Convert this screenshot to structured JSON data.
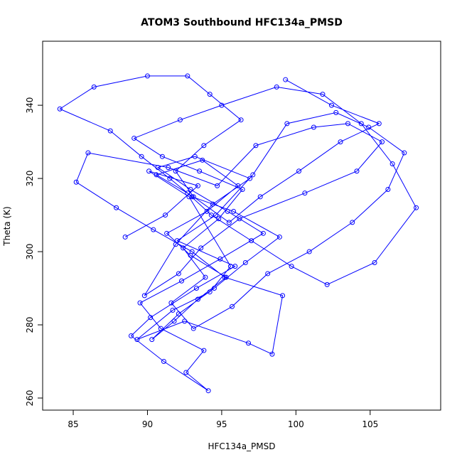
{
  "chart_data": {
    "type": "line",
    "title": "ATOM3 Southbound HFC134a_PMSD",
    "x_label": "HFC134a_PMSD",
    "y_label": "Theta (K)",
    "color": "#0000ff",
    "markers": true,
    "xlim": [
      82.94,
      109.75
    ],
    "ylim": [
      256.7,
      357.5
    ],
    "xticks": [
      85,
      90,
      95,
      100,
      105
    ],
    "yticks": [
      260,
      280,
      300,
      320,
      340
    ],
    "x": [
      88.5,
      91.2,
      93.4,
      90.1,
      92.8,
      95.6,
      94.2,
      91.7,
      89.3,
      92.5,
      96.8,
      98.4,
      99.1,
      95.2,
      93.0,
      90.4,
      87.9,
      85.2,
      86.0,
      91.4,
      94.7,
      97.3,
      101.2,
      103.5,
      105.8,
      104.1,
      100.6,
      96.2,
      93.6,
      92.1,
      89.8,
      91.9,
      94.4,
      96.9,
      93.2,
      90.7,
      92.9,
      95.4,
      97.8,
      94.9,
      92.3,
      89.5,
      90.9,
      93.8,
      92.6,
      94.1,
      91.1,
      88.9,
      90.2,
      93.3,
      95.9,
      92.0,
      94.6,
      97.1,
      99.4,
      102.7,
      104.9,
      107.3,
      106.2,
      103.8,
      100.9,
      98.1,
      95.7,
      93.1,
      91.6,
      93.9,
      92.4,
      94.8,
      96.4,
      93.5,
      91.0,
      89.1,
      92.2,
      95.0,
      98.7,
      101.8,
      104.4,
      106.5,
      108.1,
      105.3,
      102.1,
      99.7,
      97.0,
      94.3,
      92.7,
      90.6,
      93.7,
      96.1,
      94.0,
      91.3,
      92.9,
      95.3,
      93.4,
      91.8,
      90.3,
      92.1,
      94.5,
      96.6,
      98.9,
      95.8,
      93.0,
      91.5,
      89.6,
      87.5,
      84.1,
      86.4,
      90.0,
      92.7,
      94.2,
      96.3,
      93.8,
      91.9,
      93.1,
      95.5,
      97.6,
      100.2,
      103.0,
      105.6,
      102.4,
      99.3
    ],
    "values": [
      304,
      310,
      318,
      322,
      315,
      296,
      289,
      284,
      276,
      281,
      275,
      272,
      288,
      293,
      300,
      306,
      312,
      319,
      327,
      323,
      318,
      329,
      334,
      335,
      330,
      322,
      316,
      309,
      301,
      294,
      288,
      302,
      313,
      320,
      326,
      323,
      317,
      311,
      305,
      298,
      292,
      286,
      279,
      273,
      267,
      262,
      270,
      277,
      282,
      290,
      296,
      303,
      310,
      321,
      335,
      338,
      334,
      327,
      317,
      308,
      300,
      294,
      285,
      279,
      286,
      293,
      301,
      309,
      317,
      322,
      326,
      331,
      336,
      340,
      345,
      343,
      335,
      324,
      312,
      297,
      291,
      296,
      303,
      310,
      316,
      321,
      325,
      318,
      311,
      305,
      299,
      293,
      287,
      281,
      276,
      283,
      290,
      297,
      304,
      311,
      315,
      320,
      326,
      333,
      339,
      345,
      348,
      348,
      343,
      336,
      329,
      322,
      315,
      308,
      315,
      322,
      330,
      335,
      340,
      347
    ]
  }
}
